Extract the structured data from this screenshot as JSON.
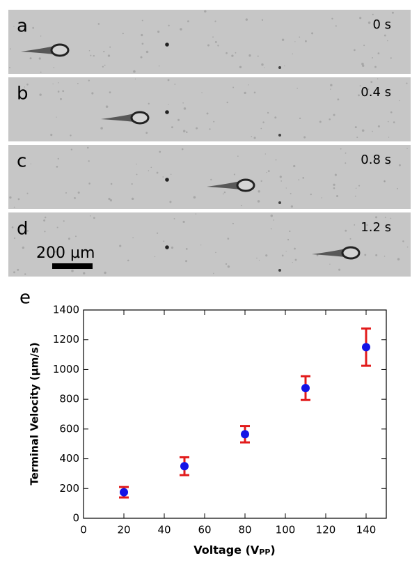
{
  "panels": [
    {
      "label": "a",
      "time": "0 s"
    },
    {
      "label": "b",
      "time": "0.4 s"
    },
    {
      "label": "c",
      "time": "0.8 s"
    },
    {
      "label": "d",
      "time": "1.2 s"
    }
  ],
  "scale_bar": "200 µm",
  "chart_data": {
    "type": "scatter",
    "panel_label": "e",
    "x_label": [
      "Voltage (V",
      "PP",
      ")"
    ],
    "y_label": "Terminal Velocity (µm/s)",
    "x": [
      20,
      50,
      80,
      110,
      140
    ],
    "y": [
      175,
      350,
      565,
      875,
      1150
    ],
    "errors": [
      35,
      60,
      55,
      80,
      125
    ],
    "marker_color": "#1414e6",
    "error_color": "#e21b1b",
    "xlim": [
      0,
      150
    ],
    "xticks": [
      0,
      20,
      40,
      60,
      80,
      100,
      120,
      140
    ],
    "ylim": [
      0,
      1400
    ],
    "yticks": [
      0,
      200,
      400,
      600,
      800,
      1000,
      1200,
      1400
    ]
  }
}
